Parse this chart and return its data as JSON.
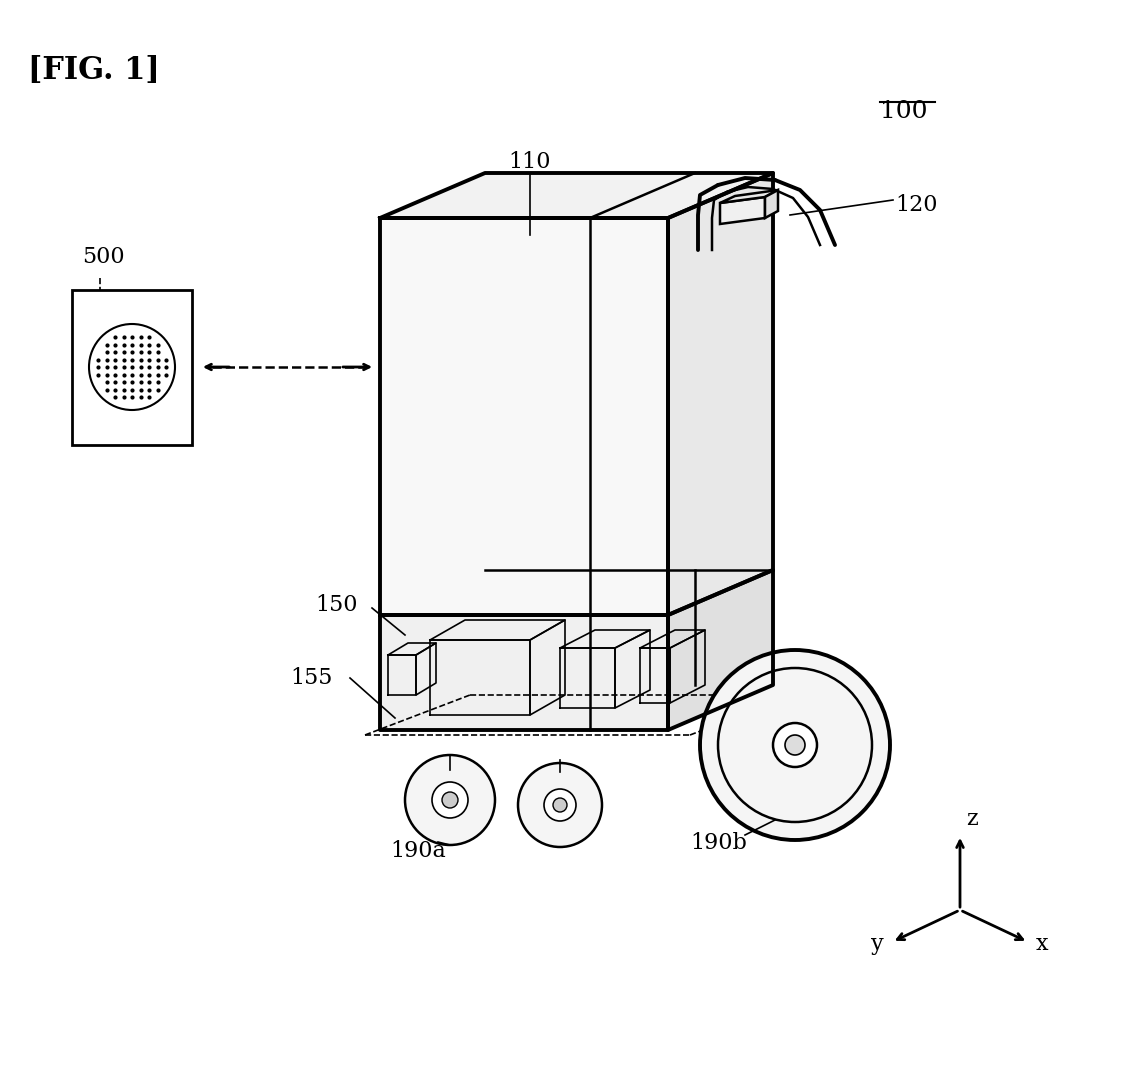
{
  "title": "[FIG. 1]",
  "bg_color": "#ffffff",
  "line_color": "#000000",
  "label_100": "100",
  "label_110": "110",
  "label_120": "120",
  "label_150": "150",
  "label_155": "155",
  "label_190a": "190a",
  "label_190b": "190b",
  "label_500": "500",
  "axis_x": "x",
  "axis_y": "y",
  "axis_z": "z",
  "fig_width": 11.34,
  "fig_height": 10.67,
  "dpi": 100
}
